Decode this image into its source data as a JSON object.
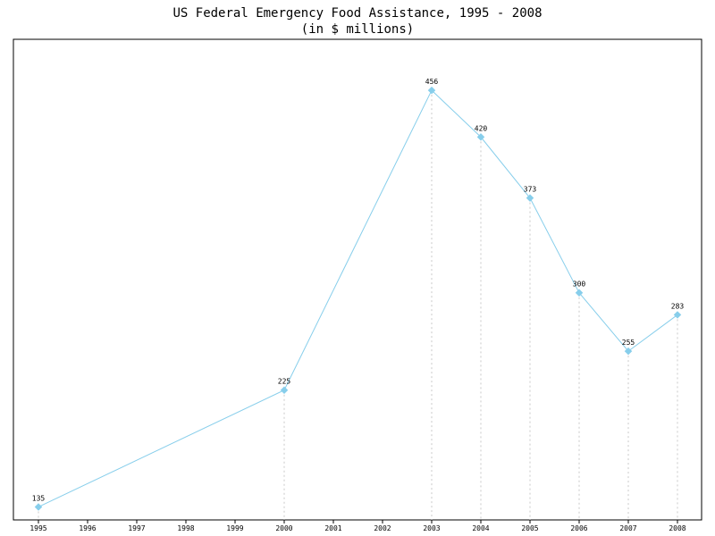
{
  "chart_data": {
    "type": "line",
    "title": "US Federal Emergency Food Assistance, 1995 - 2008",
    "subtitle": "(in $ millions)",
    "xlabel": "",
    "ylabel": "",
    "categories": [
      "1995",
      "1996",
      "1997",
      "1998",
      "1999",
      "2000",
      "2001",
      "2002",
      "2003",
      "2004",
      "2005",
      "2006",
      "2007",
      "2008"
    ],
    "series": [
      {
        "x": [
          "1995",
          "2000",
          "2003",
          "2004",
          "2005",
          "2006",
          "2007",
          "2008"
        ],
        "values": [
          135,
          225,
          456,
          420,
          373,
          300,
          255,
          283
        ],
        "color": "#87ceeb"
      }
    ],
    "ylim": [
      125,
      465
    ],
    "grid": "dashed vertical drop lines from each point",
    "legend": "none"
  }
}
